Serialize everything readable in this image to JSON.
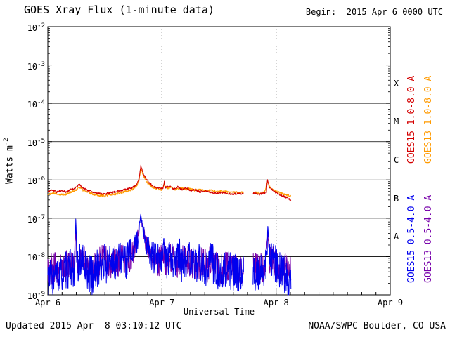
{
  "header": {
    "title": "GOES Xray Flux (1-minute data)",
    "begin": "Begin:  2015 Apr 6 0000 UTC"
  },
  "footer": {
    "updated": "Updated 2015 Apr  8 03:10:12 UTC",
    "credit": "NOAA/SWPC Boulder, CO USA"
  },
  "chart_data": {
    "type": "line",
    "title": "GOES Xray Flux (1-minute data)",
    "xlabel": "Universal Time",
    "ylabel_base": "Watts m",
    "ylabel_exp": "-2",
    "y_tick_base": "10",
    "y_tick_exps": [
      -2,
      -3,
      -4,
      -5,
      -6,
      -7,
      -8,
      -9
    ],
    "ylog_range": [
      -9,
      -2
    ],
    "x_range_days": [
      0,
      3
    ],
    "x_ticks": [
      {
        "t": 0,
        "label": "Apr 6"
      },
      {
        "t": 1,
        "label": "Apr 7"
      },
      {
        "t": 2,
        "label": "Apr 8"
      },
      {
        "t": 3,
        "label": "Apr 9"
      }
    ],
    "hlines_exp": [
      -3,
      -4,
      -5,
      -6,
      -7,
      -8
    ],
    "vlines_days": [
      1,
      2
    ],
    "class_bands": [
      {
        "label": "X",
        "exp": -3.5
      },
      {
        "label": "M",
        "exp": -4.5
      },
      {
        "label": "C",
        "exp": -5.5
      },
      {
        "label": "B",
        "exp": -6.5
      },
      {
        "label": "A",
        "exp": -7.5
      }
    ],
    "right_labels": [
      {
        "text": "GOES15 1.0-8.0 A",
        "color": "#d40000",
        "row": 0,
        "col": 0
      },
      {
        "text": "GOES13 1.0-8.0 A",
        "color": "#ff9a00",
        "row": 0,
        "col": 1
      },
      {
        "text": "GOES15 0.5-4.0 A",
        "color": "#0000ee",
        "row": 1,
        "col": 0
      },
      {
        "text": "GOES13 0.5-4.0 A",
        "color": "#7700aa",
        "row": 1,
        "col": 1
      }
    ],
    "series": [
      {
        "id": "goes15-long",
        "name": "GOES15 1.0-8.0 A",
        "color": "#d40000",
        "noisy": false,
        "noise_dex": 0.025,
        "seed": 11,
        "gaps": [
          [
            1.715,
            1.795
          ]
        ],
        "points": [
          [
            0.0,
            5e-07
          ],
          [
            0.04,
            5.5e-07
          ],
          [
            0.08,
            4.8e-07
          ],
          [
            0.12,
            5.3e-07
          ],
          [
            0.16,
            4.8e-07
          ],
          [
            0.2,
            5.6e-07
          ],
          [
            0.24,
            6e-07
          ],
          [
            0.275,
            7.6e-07
          ],
          [
            0.3,
            6.4e-07
          ],
          [
            0.34,
            5.5e-07
          ],
          [
            0.38,
            5e-07
          ],
          [
            0.42,
            4.6e-07
          ],
          [
            0.46,
            4.4e-07
          ],
          [
            0.5,
            4.3e-07
          ],
          [
            0.55,
            4.6e-07
          ],
          [
            0.6,
            5e-07
          ],
          [
            0.65,
            5.4e-07
          ],
          [
            0.7,
            5.8e-07
          ],
          [
            0.74,
            6.3e-07
          ],
          [
            0.78,
            7.6e-07
          ],
          [
            0.8,
            1.1e-06
          ],
          [
            0.815,
            2.4e-06
          ],
          [
            0.83,
            1.7e-06
          ],
          [
            0.85,
            1.2e-06
          ],
          [
            0.88,
            9e-07
          ],
          [
            0.92,
            7e-07
          ],
          [
            0.96,
            6.2e-07
          ],
          [
            1.0,
            6e-07
          ],
          [
            1.01,
            6.2e-07
          ],
          [
            1.02,
            8.8e-07
          ],
          [
            1.03,
            6.4e-07
          ],
          [
            1.07,
            7e-07
          ],
          [
            1.1,
            5.8e-07
          ],
          [
            1.14,
            6.6e-07
          ],
          [
            1.17,
            5.6e-07
          ],
          [
            1.21,
            6.2e-07
          ],
          [
            1.25,
            5.2e-07
          ],
          [
            1.29,
            5.6e-07
          ],
          [
            1.33,
            4.9e-07
          ],
          [
            1.38,
            5.2e-07
          ],
          [
            1.43,
            4.7e-07
          ],
          [
            1.48,
            4.5e-07
          ],
          [
            1.53,
            4.7e-07
          ],
          [
            1.58,
            4.4e-07
          ],
          [
            1.63,
            4.3e-07
          ],
          [
            1.71,
            4.4e-07
          ],
          [
            1.8,
            4.5e-07
          ],
          [
            1.85,
            4.2e-07
          ],
          [
            1.9,
            4.6e-07
          ],
          [
            1.915,
            4.8e-07
          ],
          [
            1.925,
            1.05e-06
          ],
          [
            1.94,
            6.5e-07
          ],
          [
            1.99,
            4.8e-07
          ],
          [
            2.03,
            4.2e-07
          ],
          [
            2.07,
            3.7e-07
          ],
          [
            2.1,
            3.3e-07
          ],
          [
            2.132,
            3e-07
          ]
        ]
      },
      {
        "id": "goes13-long",
        "name": "GOES13 1.0-8.0 A",
        "color": "#ff9a00",
        "noisy": false,
        "noise_dex": 0.03,
        "seed": 22,
        "gaps": [
          [
            1.715,
            1.795
          ]
        ],
        "points": [
          [
            0.0,
            4.2e-07
          ],
          [
            0.05,
            4.6e-07
          ],
          [
            0.1,
            4.3e-07
          ],
          [
            0.15,
            4.1e-07
          ],
          [
            0.2,
            4.8e-07
          ],
          [
            0.24,
            5.2e-07
          ],
          [
            0.275,
            6.6e-07
          ],
          [
            0.31,
            5.3e-07
          ],
          [
            0.38,
            4.4e-07
          ],
          [
            0.44,
            4e-07
          ],
          [
            0.5,
            3.8e-07
          ],
          [
            0.56,
            4.1e-07
          ],
          [
            0.62,
            4.5e-07
          ],
          [
            0.68,
            5e-07
          ],
          [
            0.74,
            5.6e-07
          ],
          [
            0.78,
            6.8e-07
          ],
          [
            0.8,
            1e-06
          ],
          [
            0.815,
            2e-06
          ],
          [
            0.83,
            1.5e-06
          ],
          [
            0.85,
            1.05e-06
          ],
          [
            0.88,
            8e-07
          ],
          [
            0.92,
            6.4e-07
          ],
          [
            0.96,
            5.8e-07
          ],
          [
            1.0,
            5.6e-07
          ],
          [
            1.02,
            7.8e-07
          ],
          [
            1.04,
            5.9e-07
          ],
          [
            1.08,
            6.4e-07
          ],
          [
            1.12,
            5.6e-07
          ],
          [
            1.16,
            6.2e-07
          ],
          [
            1.2,
            5.7e-07
          ],
          [
            1.24,
            5.9e-07
          ],
          [
            1.28,
            5.4e-07
          ],
          [
            1.33,
            5.6e-07
          ],
          [
            1.38,
            5.1e-07
          ],
          [
            1.43,
            5.3e-07
          ],
          [
            1.48,
            4.9e-07
          ],
          [
            1.53,
            5.1e-07
          ],
          [
            1.58,
            4.8e-07
          ],
          [
            1.64,
            4.7e-07
          ],
          [
            1.71,
            4.7e-07
          ],
          [
            1.8,
            4.7e-07
          ],
          [
            1.86,
            4.5e-07
          ],
          [
            1.9,
            4.9e-07
          ],
          [
            1.925,
            9.2e-07
          ],
          [
            1.95,
            6e-07
          ],
          [
            2.0,
            5e-07
          ],
          [
            2.04,
            4.5e-07
          ],
          [
            2.08,
            4.1e-07
          ],
          [
            2.132,
            3.7e-07
          ]
        ]
      },
      {
        "id": "goes15-short",
        "name": "GOES15 0.5-4.0 A",
        "color": "#0000ee",
        "noisy": true,
        "noise_dex": 0.5,
        "seed": 33,
        "gaps": [
          [
            1.715,
            1.795
          ]
        ],
        "points": [
          [
            0.0,
            3e-09
          ],
          [
            0.05,
            2.6e-09
          ],
          [
            0.1,
            3.2e-09
          ],
          [
            0.15,
            4e-09
          ],
          [
            0.2,
            5e-09
          ],
          [
            0.235,
            5e-09
          ],
          [
            0.245,
            1e-07
          ],
          [
            0.255,
            6e-09
          ],
          [
            0.3,
            8e-09
          ],
          [
            0.34,
            4e-09
          ],
          [
            0.4,
            3e-09
          ],
          [
            0.45,
            6e-09
          ],
          [
            0.49,
            5e-09
          ],
          [
            0.5,
            1.3e-08
          ],
          [
            0.51,
            5e-09
          ],
          [
            0.56,
            9e-09
          ],
          [
            0.6,
            6e-09
          ],
          [
            0.64,
            1e-08
          ],
          [
            0.68,
            7e-09
          ],
          [
            0.72,
            1.2e-08
          ],
          [
            0.76,
            1.5e-08
          ],
          [
            0.79,
            3e-08
          ],
          [
            0.815,
            1.3e-07
          ],
          [
            0.83,
            6e-08
          ],
          [
            0.85,
            3e-08
          ],
          [
            0.88,
            1.5e-08
          ],
          [
            0.92,
            9e-09
          ],
          [
            0.96,
            7e-09
          ],
          [
            1.0,
            8e-09
          ],
          [
            1.015,
            1.6e-08
          ],
          [
            1.03,
            7e-09
          ],
          [
            1.08,
            1e-08
          ],
          [
            1.12,
            6e-09
          ],
          [
            1.155,
            1.2e-08
          ],
          [
            1.17,
            6e-09
          ],
          [
            1.24,
            9e-09
          ],
          [
            1.28,
            5e-09
          ],
          [
            1.32,
            8e-09
          ],
          [
            1.36,
            4e-09
          ],
          [
            1.4,
            6e-09
          ],
          [
            1.435,
            1.4e-08
          ],
          [
            1.45,
            5e-09
          ],
          [
            1.52,
            4e-09
          ],
          [
            1.57,
            5e-09
          ],
          [
            1.62,
            3.5e-09
          ],
          [
            1.69,
            4e-09
          ],
          [
            1.8,
            4e-09
          ],
          [
            1.85,
            3.5e-09
          ],
          [
            1.9,
            5e-09
          ],
          [
            1.918,
            6e-09
          ],
          [
            1.928,
            7e-08
          ],
          [
            1.94,
            1e-08
          ],
          [
            2.0,
            6e-09
          ],
          [
            2.05,
            4e-09
          ],
          [
            2.1,
            3e-09
          ],
          [
            2.132,
            2.6e-09
          ]
        ]
      },
      {
        "id": "goes13-short",
        "name": "GOES13 0.5-4.0 A",
        "color": "#7700aa",
        "noisy": true,
        "noise_dex": 0.42,
        "seed": 44,
        "gaps": [
          [
            1.715,
            1.795
          ]
        ],
        "points": [
          [
            0.0,
            4.5e-09
          ],
          [
            0.05,
            5e-09
          ],
          [
            0.1,
            4.5e-09
          ],
          [
            0.15,
            5.5e-09
          ],
          [
            0.2,
            6e-09
          ],
          [
            0.235,
            6e-09
          ],
          [
            0.245,
            6.5e-08
          ],
          [
            0.255,
            7e-09
          ],
          [
            0.3,
            9e-09
          ],
          [
            0.35,
            5e-09
          ],
          [
            0.4,
            4.5e-09
          ],
          [
            0.45,
            7e-09
          ],
          [
            0.5,
            1e-08
          ],
          [
            0.54,
            6e-09
          ],
          [
            0.58,
            8e-09
          ],
          [
            0.62,
            7e-09
          ],
          [
            0.66,
            9e-09
          ],
          [
            0.7,
            8e-09
          ],
          [
            0.74,
            1.1e-08
          ],
          [
            0.78,
            2.5e-08
          ],
          [
            0.815,
            1.1e-07
          ],
          [
            0.83,
            5.5e-08
          ],
          [
            0.86,
            2.2e-08
          ],
          [
            0.9,
            1.2e-08
          ],
          [
            0.94,
            8e-09
          ],
          [
            0.98,
            7e-09
          ],
          [
            1.015,
            1.3e-08
          ],
          [
            1.03,
            8e-09
          ],
          [
            1.08,
            9e-09
          ],
          [
            1.14,
            7e-09
          ],
          [
            1.18,
            1e-08
          ],
          [
            1.22,
            8e-09
          ],
          [
            1.26,
            7e-09
          ],
          [
            1.3,
            6e-09
          ],
          [
            1.35,
            7e-09
          ],
          [
            1.4,
            5.5e-09
          ],
          [
            1.435,
            1e-08
          ],
          [
            1.45,
            5.5e-09
          ],
          [
            1.53,
            4.8e-09
          ],
          [
            1.58,
            5.2e-09
          ],
          [
            1.64,
            4.8e-09
          ],
          [
            1.69,
            5e-09
          ],
          [
            1.8,
            5e-09
          ],
          [
            1.86,
            4.6e-09
          ],
          [
            1.9,
            5.5e-09
          ],
          [
            1.928,
            5e-08
          ],
          [
            1.94,
            9e-09
          ],
          [
            2.0,
            6.5e-09
          ],
          [
            2.06,
            5e-09
          ],
          [
            2.132,
            4.2e-09
          ]
        ]
      }
    ]
  }
}
